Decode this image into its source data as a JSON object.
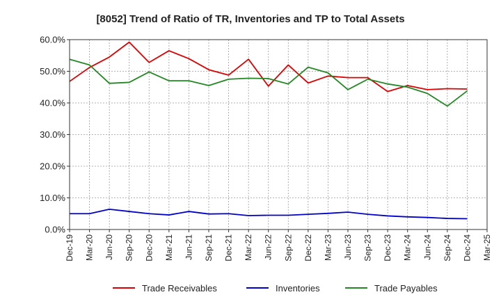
{
  "chart_data": {
    "type": "line",
    "title": "[8052]  Trend of Ratio of TR, Inventories and TP to Total Assets",
    "xlabel": "",
    "ylabel": "",
    "ylim": [
      0,
      60
    ],
    "y_ticks": [
      "0.0%",
      "10.0%",
      "20.0%",
      "30.0%",
      "40.0%",
      "50.0%",
      "60.0%"
    ],
    "y_tick_values": [
      0,
      10,
      20,
      30,
      40,
      50,
      60
    ],
    "x": [
      "Dec-19",
      "Mar-20",
      "Jun-20",
      "Sep-20",
      "Dec-20",
      "Mar-21",
      "Jun-21",
      "Sep-21",
      "Dec-21",
      "Mar-22",
      "Jun-22",
      "Sep-22",
      "Dec-22",
      "Mar-23",
      "Jun-23",
      "Sep-23",
      "Dec-23",
      "Mar-24",
      "Jun-24",
      "Sep-24",
      "Dec-24",
      "Mar-25"
    ],
    "x_tick_labels": [
      "Dec-19",
      "Mar-20",
      "Jun-20",
      "Sep-20",
      "Dec-20",
      "Mar-21",
      "Jun-21",
      "Sep-21",
      "Dec-21",
      "Mar-22",
      "Jun-22",
      "Sep-22",
      "Dec-22",
      "Mar-23",
      "Jun-23",
      "Sep-23",
      "Dec-23",
      "Mar-24",
      "Jun-24",
      "Sep-24",
      "Dec-24",
      "Mar-25"
    ],
    "grid": true,
    "legend_position": "bottom",
    "series": [
      {
        "name": "Trade Receivables",
        "color": "#dd0000",
        "values": [
          46.8,
          51.2,
          54.5,
          59.2,
          52.8,
          56.5,
          54.0,
          50.5,
          48.8,
          53.8,
          45.3,
          52.0,
          46.3,
          48.5,
          48.0,
          48.0,
          43.6,
          45.5,
          44.2,
          44.5,
          44.4,
          null
        ]
      },
      {
        "name": "Inventories",
        "color": "#0000cc",
        "values": [
          5.0,
          5.0,
          6.4,
          5.7,
          5.0,
          4.6,
          5.7,
          4.9,
          5.0,
          4.4,
          4.5,
          4.5,
          4.8,
          5.1,
          5.5,
          4.8,
          4.3,
          4.0,
          3.8,
          3.5,
          3.4,
          null
        ]
      },
      {
        "name": "Trade Payables",
        "color": "#228822",
        "values": [
          53.8,
          52.0,
          46.2,
          46.5,
          49.8,
          47.0,
          47.0,
          45.5,
          47.5,
          47.8,
          47.7,
          46.0,
          51.3,
          49.5,
          44.2,
          47.5,
          46.0,
          45.0,
          43.0,
          39.0,
          43.8,
          null
        ]
      }
    ]
  }
}
